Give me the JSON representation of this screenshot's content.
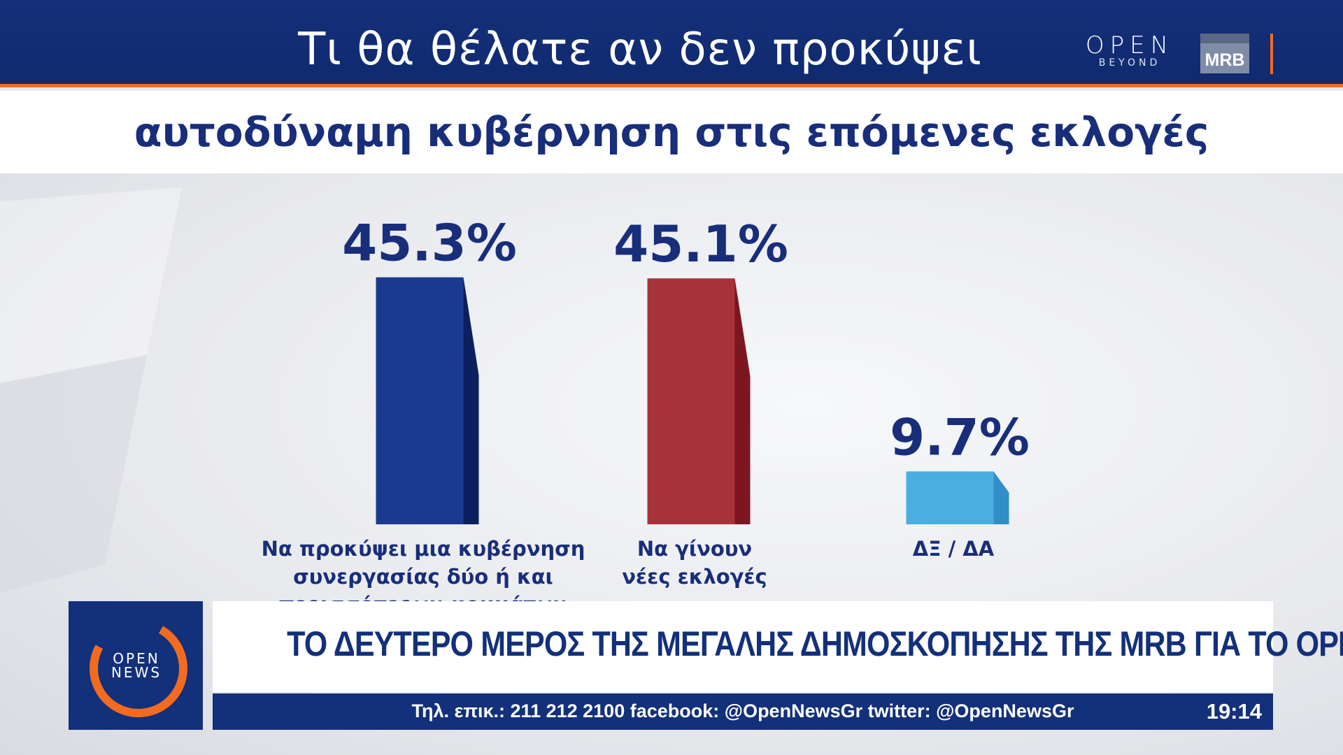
{
  "header": {
    "title_line1": "Τι θα θέλατε αν δεν προκύψει",
    "title_line2": "αυτοδύναμη κυβέρνηση στις επόμενες  εκλογές",
    "open_logo": "OPEN",
    "open_logo_sub": "BEYOND",
    "mrb_logo": "MRB",
    "colors": {
      "bar_bg": "#13307a",
      "accent": "#f26b21"
    }
  },
  "chart_data": {
    "type": "bar",
    "title": "Τι θα θέλατε αν δεν προκύψει αυτοδύναμη κυβέρνηση στις επόμενες  εκλογές",
    "categories": [
      [
        "Να προκύψει μια κυβέρνηση",
        "συνεργασίας δύο ή και",
        "περισσότερων κομμάτων"
      ],
      [
        "Να γίνουν",
        "νέες εκλογές"
      ],
      [
        "ΔΞ / ΔΑ"
      ]
    ],
    "values": [
      45.3,
      45.1,
      9.7
    ],
    "value_labels": [
      "45.3%",
      "45.1%",
      "9.7%"
    ],
    "colors": [
      "#1a3990",
      "#a8323a",
      "#4aaee0"
    ],
    "unit": "%",
    "grid": false,
    "legend": "none"
  },
  "lower_third": {
    "logo_text": [
      "OPEN",
      "NEWS"
    ],
    "headline": "ΤΟ ΔΕΥΤΕΡΟ ΜΕΡΟΣ ΤΗΣ ΜΕΓΑΛΗΣ ΔΗΜΟΣΚΟΠΗΣΗΣ ΤΗΣ MRB ΓΙΑ ΤΟ OPEN",
    "ticker": "Τηλ. επικ.: 211 212 2100 facebook: @OpenNewsGr twitter: @OpenNewsGr",
    "clock": "19:14"
  }
}
